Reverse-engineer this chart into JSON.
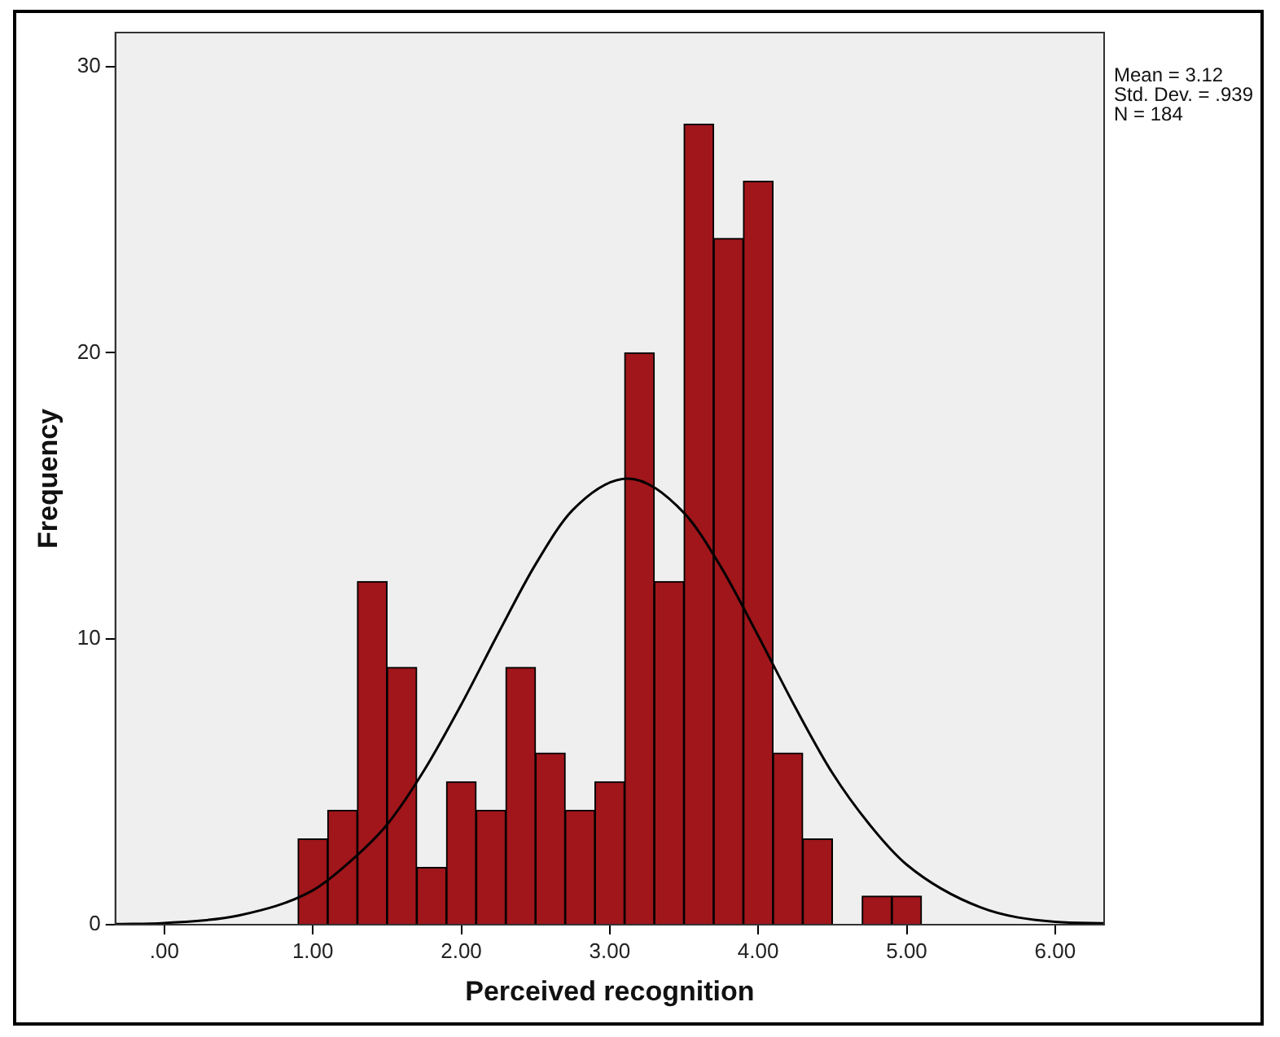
{
  "chart_data": {
    "type": "histogram",
    "xlabel": "Perceived recognition",
    "ylabel": "Frequency",
    "bins": [
      0.9,
      1.1,
      1.3,
      1.5,
      1.7,
      1.9,
      2.1,
      2.3,
      2.5,
      2.7,
      2.9,
      3.1,
      3.3,
      3.5,
      3.7,
      3.9,
      4.1,
      4.3,
      4.5,
      4.7,
      4.9,
      5.1
    ],
    "values": [
      3,
      4,
      12,
      9,
      2,
      5,
      4,
      9,
      6,
      4,
      5,
      20,
      12,
      28,
      24,
      26,
      6,
      3,
      0,
      1,
      1
    ],
    "color": "#a0161b",
    "series": [
      {
        "type": "line",
        "color": "#000000",
        "x": [
          -0.33,
          0,
          0.5,
          1.0,
          1.25,
          1.5,
          1.75,
          2.0,
          2.25,
          2.5,
          2.75,
          3.12,
          3.5,
          3.75,
          4.0,
          4.25,
          4.5,
          4.75,
          5.0,
          5.5,
          6.0,
          6.33
        ],
        "values": [
          0.02,
          0.06,
          0.32,
          1.2,
          2.2,
          3.5,
          5.4,
          7.7,
          10.2,
          12.6,
          14.5,
          15.6,
          14.4,
          12.5,
          10.1,
          7.6,
          5.3,
          3.5,
          2.1,
          0.6,
          0.1,
          0.05
        ]
      }
    ],
    "xlim": [
      -0.33,
      6.33
    ],
    "ylim": [
      0,
      31.2
    ],
    "xticks": [
      {
        "value": 0,
        "label": ".00"
      },
      {
        "value": 1,
        "label": "1.00"
      },
      {
        "value": 2,
        "label": "2.00"
      },
      {
        "value": 3,
        "label": "3.00"
      },
      {
        "value": 4,
        "label": "4.00"
      },
      {
        "value": 5,
        "label": "5.00"
      },
      {
        "value": 6,
        "label": "6.00"
      }
    ],
    "yticks": [
      0,
      10,
      20,
      30
    ],
    "annotations": [
      "Mean = 3.12",
      "Std. Dev. = .939",
      "N = 184"
    ],
    "grid": false,
    "legend": false,
    "marker": "none",
    "line_style": "solid"
  }
}
